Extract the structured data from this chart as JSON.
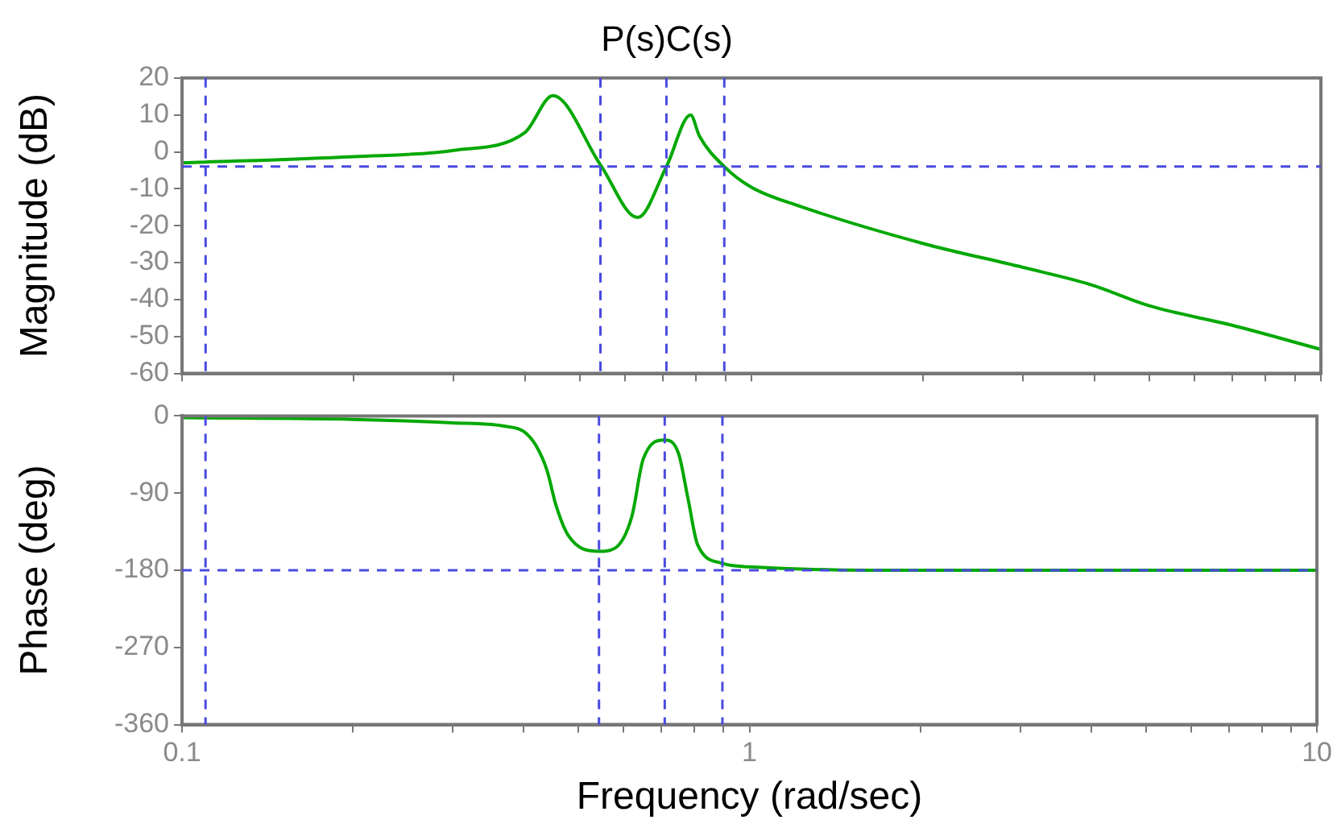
{
  "chart_data": [
    {
      "type": "line",
      "title": "P(s)C(s)",
      "ylabel": "Magnitude (dB)",
      "log": "x",
      "tick_labels": "y",
      "grid": false,
      "legend": false,
      "marker": "none",
      "line_style": "solid",
      "xlim": [
        0.1,
        10
      ],
      "ylim": [
        -60,
        20
      ],
      "xticks": [
        0.1,
        {
          "value": 0.2,
          "label": null
        },
        {
          "value": 0.3,
          "label": null
        },
        {
          "value": 0.4,
          "label": null
        },
        {
          "value": 0.5,
          "label": null
        },
        {
          "value": 0.6,
          "label": null
        },
        {
          "value": 0.7,
          "label": null
        },
        {
          "value": 0.8,
          "label": null
        },
        {
          "value": 0.9,
          "label": null
        },
        1,
        {
          "value": 2,
          "label": null
        },
        {
          "value": 3,
          "label": null
        },
        {
          "value": 4,
          "label": null
        },
        {
          "value": 5,
          "label": null
        },
        {
          "value": 6,
          "label": null
        },
        {
          "value": 7,
          "label": null
        },
        {
          "value": 8,
          "label": null
        },
        {
          "value": 9,
          "label": null
        },
        10
      ],
      "yticks": [
        -60,
        -50,
        -40,
        -30,
        -20,
        -10,
        0,
        10,
        20
      ],
      "x": [
        0.1,
        0.2,
        0.3,
        0.4,
        0.448,
        0.543,
        0.631,
        0.709,
        0.782,
        0.81,
        0.896,
        1.0,
        1.22,
        2.0,
        3.0,
        3.95,
        5.0,
        7.0,
        10
      ],
      "series": [
        {
          "color": "#00a800",
          "values": [
            -3,
            -1.3,
            0.4,
            5.2,
            15.2,
            -3.5,
            -17.8,
            -4,
            10,
            4.3,
            -4,
            -9.6,
            -14.8,
            -24.8,
            -31.3,
            -36,
            -41.7,
            -47,
            -53.5
          ]
        }
      ],
      "ref_lines": [
        {
          "axis": "y",
          "value": -4,
          "color": "#4a4ae0",
          "line_style": "dashed"
        },
        {
          "axis": "x",
          "value": 0.11,
          "color": "#4a4ae0",
          "line_style": "dashed"
        },
        {
          "axis": "x",
          "value": 0.543,
          "color": "#4a4ae0",
          "line_style": "dashed"
        },
        {
          "axis": "x",
          "value": 0.709,
          "color": "#4a4ae0",
          "line_style": "dashed"
        },
        {
          "axis": "x",
          "value": 0.896,
          "color": "#4a4ae0",
          "line_style": "dashed"
        }
      ]
    },
    {
      "type": "line",
      "xlabel": "Frequency (rad/sec)",
      "ylabel": "Phase (deg)",
      "log": "x",
      "grid": false,
      "legend": false,
      "marker": "none",
      "line_style": "solid",
      "xlim": [
        0.1,
        10
      ],
      "ylim": [
        -360,
        0
      ],
      "xticks": [
        0.1,
        {
          "value": 0.2,
          "label": null
        },
        {
          "value": 0.3,
          "label": null
        },
        {
          "value": 0.4,
          "label": null
        },
        {
          "value": 0.5,
          "label": null
        },
        {
          "value": 0.6,
          "label": null
        },
        {
          "value": 0.7,
          "label": null
        },
        {
          "value": 0.8,
          "label": null
        },
        {
          "value": 0.9,
          "label": null
        },
        1,
        {
          "value": 2,
          "label": null
        },
        {
          "value": 3,
          "label": null
        },
        {
          "value": 4,
          "label": null
        },
        {
          "value": 5,
          "label": null
        },
        {
          "value": 6,
          "label": null
        },
        {
          "value": 7,
          "label": null
        },
        {
          "value": 8,
          "label": null
        },
        {
          "value": 9,
          "label": null
        },
        10
      ],
      "yticks": [
        -360,
        -270,
        -180,
        -90,
        0
      ],
      "x": [
        0.1,
        0.2,
        0.3,
        0.371,
        0.4,
        0.42,
        0.44,
        0.456,
        0.48,
        0.543,
        0.58,
        0.62,
        0.65,
        0.709,
        0.75,
        0.78,
        0.81,
        0.896,
        1.0,
        2.0,
        10
      ],
      "series": [
        {
          "color": "#00a800",
          "values": [
            -2,
            -4,
            -8,
            -12,
            -18,
            -34,
            -64,
            -104,
            -140,
            -158,
            -154,
            -118,
            -50,
            -28,
            -44,
            -98,
            -150,
            -172,
            -176,
            -180,
            -180
          ]
        }
      ],
      "ref_lines": [
        {
          "axis": "y",
          "value": -180,
          "color": "#4a4ae0",
          "line_style": "dashed"
        },
        {
          "axis": "x",
          "value": 0.11,
          "color": "#4a4ae0",
          "line_style": "dashed"
        },
        {
          "axis": "x",
          "value": 0.543,
          "color": "#4a4ae0",
          "line_style": "dashed"
        },
        {
          "axis": "x",
          "value": 0.709,
          "color": "#4a4ae0",
          "line_style": "dashed"
        },
        {
          "axis": "x",
          "value": 0.896,
          "color": "#4a4ae0",
          "line_style": "dashed"
        }
      ]
    }
  ]
}
